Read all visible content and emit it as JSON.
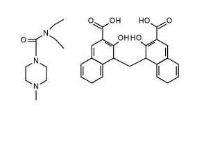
{
  "molecules": [
    {
      "atoms": [
        "N",
        "O",
        "N",
        "N"
      ]
    },
    {
      "atoms": [
        "O",
        "OH",
        "OH",
        "HO",
        "HO",
        "O"
      ]
    }
  ]
}
